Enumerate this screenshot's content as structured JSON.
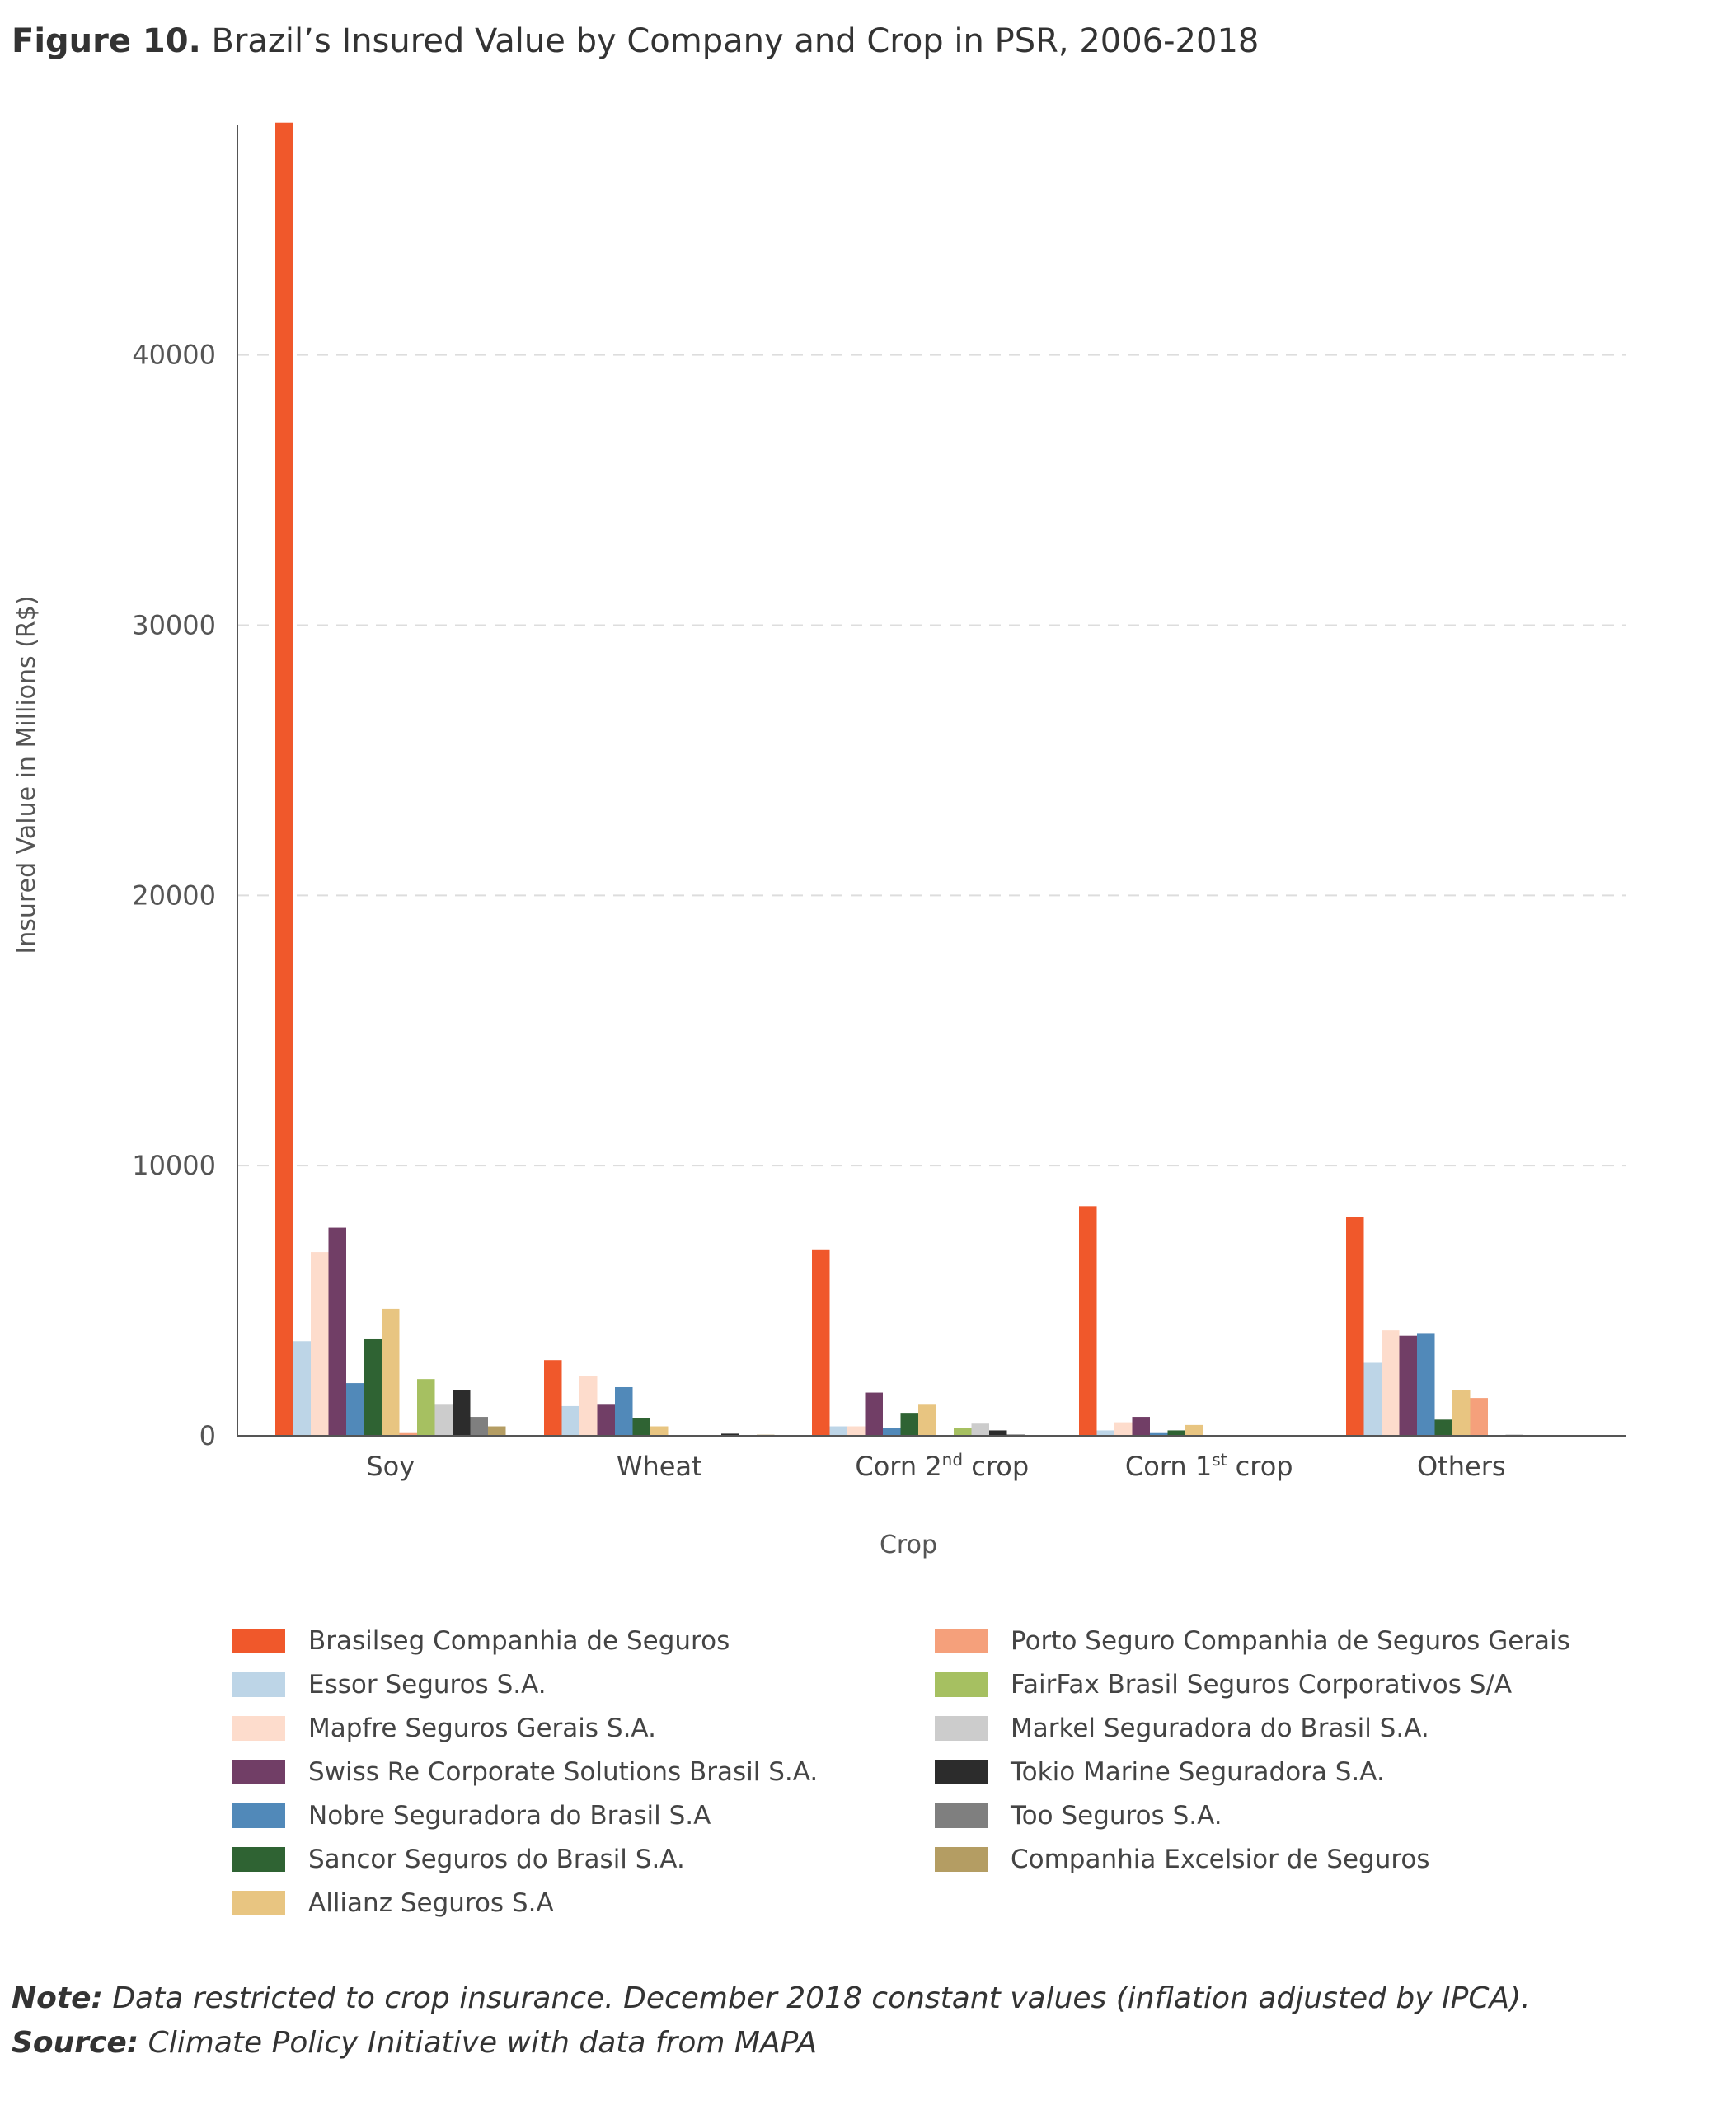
{
  "figure": {
    "label": "Figure 10.",
    "title": "Brazil’s Insured Value by Company and Crop in PSR, 2006-2018"
  },
  "chart_data": {
    "type": "bar",
    "xlabel": "Crop",
    "ylabel": "Insured Value in Millions (R$)",
    "ylim": [
      0,
      48500
    ],
    "yticks": [
      0,
      10000,
      20000,
      30000,
      40000
    ],
    "grid": true,
    "legend_position": "bottom",
    "categories": [
      {
        "label": "Soy",
        "sup": "",
        "suffix": ""
      },
      {
        "label": "Wheat",
        "sup": "",
        "suffix": ""
      },
      {
        "label": "Corn 2",
        "sup": "nd",
        "suffix": " crop"
      },
      {
        "label": "Corn 1",
        "sup": "st",
        "suffix": " crop"
      },
      {
        "label": "Others",
        "sup": "",
        "suffix": ""
      }
    ],
    "series": [
      {
        "name": "Brasilseg Companhia de Seguros",
        "color": "#f0582b",
        "values": [
          48600,
          2800,
          6900,
          8500,
          8100
        ]
      },
      {
        "name": "Essor Seguros S.A.",
        "color": "#bdd5e7",
        "values": [
          3500,
          1100,
          350,
          200,
          2700
        ]
      },
      {
        "name": "Mapfre Seguros Gerais S.A.",
        "color": "#fddccc",
        "values": [
          6800,
          2200,
          350,
          500,
          3900
        ]
      },
      {
        "name": "Swiss Re Corporate Solutions Brasil S.A.",
        "color": "#713e66",
        "values": [
          7700,
          1150,
          1600,
          700,
          3700
        ]
      },
      {
        "name": "Nobre Seguradora do Brasil S.A",
        "color": "#5189b9",
        "values": [
          1950,
          1800,
          300,
          100,
          3800
        ]
      },
      {
        "name": "Sancor Seguros do Brasil S.A.",
        "color": "#2f6333",
        "values": [
          3600,
          650,
          850,
          200,
          600
        ]
      },
      {
        "name": "Allianz Seguros S.A",
        "color": "#e8c581",
        "values": [
          4700,
          350,
          1150,
          400,
          1700
        ]
      },
      {
        "name": "Porto Seguro Companhia de Seguros Gerais",
        "color": "#f5a07b",
        "values": [
          100,
          0,
          0,
          0,
          1400
        ]
      },
      {
        "name": "FairFax Brasil Seguros Corporativos S/A",
        "color": "#a6c061",
        "values": [
          2100,
          0,
          300,
          0,
          0
        ]
      },
      {
        "name": "Markel Seguradora do Brasil S.A.",
        "color": "#cccccc",
        "values": [
          1150,
          0,
          450,
          0,
          50
        ]
      },
      {
        "name": "Tokio Marine Seguradora S.A.",
        "color": "#2c2c2c",
        "values": [
          1700,
          80,
          200,
          0,
          0
        ]
      },
      {
        "name": "Too Seguros S.A.",
        "color": "#7f7f7f",
        "values": [
          700,
          0,
          50,
          0,
          0
        ]
      },
      {
        "name": "Companhia Excelsior de Seguros",
        "color": "#b49d63",
        "values": [
          350,
          40,
          0,
          0,
          0
        ]
      }
    ]
  },
  "notes": {
    "note_label": "Note:",
    "note_text": " Data restricted to crop insurance. December 2018 constant values (inflation adjusted by IPCA).",
    "source_label": "Source:",
    "source_text": " Climate Policy Initiative with data from MAPA"
  }
}
